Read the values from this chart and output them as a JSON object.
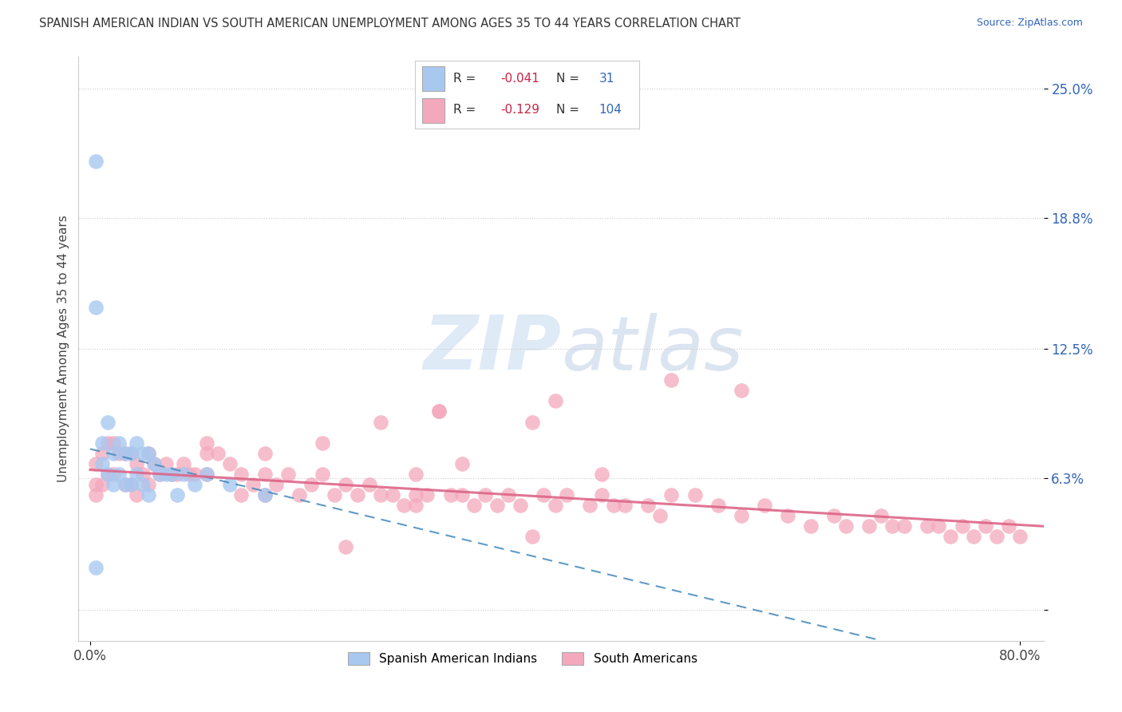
{
  "title": "SPANISH AMERICAN INDIAN VS SOUTH AMERICAN UNEMPLOYMENT AMONG AGES 35 TO 44 YEARS CORRELATION CHART",
  "source": "Source: ZipAtlas.com",
  "ylabel": "Unemployment Among Ages 35 to 44 years",
  "xlim": [
    -0.01,
    0.82
  ],
  "ylim": [
    -0.015,
    0.265
  ],
  "ytick_vals": [
    0.0,
    0.063,
    0.125,
    0.188,
    0.25
  ],
  "ytick_labels": [
    "",
    "6.3%",
    "12.5%",
    "18.8%",
    "25.0%"
  ],
  "xtick_vals": [
    0.0,
    0.8
  ],
  "xtick_labels": [
    "0.0%",
    "80.0%"
  ],
  "R_blue": -0.041,
  "N_blue": 31,
  "R_pink": -0.129,
  "N_pink": 104,
  "legend_labels": [
    "Spanish American Indians",
    "South Americans"
  ],
  "blue_color": "#a8c8f0",
  "pink_color": "#f4a8bc",
  "blue_line_color": "#4488bb",
  "pink_line_color": "#dd6688",
  "background_color": "#ffffff",
  "watermark_zip": "ZIP",
  "watermark_atlas": "atlas",
  "blue_x": [
    0.005,
    0.005,
    0.005,
    0.01,
    0.01,
    0.015,
    0.015,
    0.02,
    0.02,
    0.025,
    0.025,
    0.03,
    0.03,
    0.035,
    0.035,
    0.04,
    0.04,
    0.045,
    0.045,
    0.05,
    0.05,
    0.055,
    0.06,
    0.065,
    0.07,
    0.075,
    0.08,
    0.09,
    0.1,
    0.12,
    0.15
  ],
  "blue_y": [
    0.215,
    0.145,
    0.02,
    0.08,
    0.07,
    0.09,
    0.065,
    0.075,
    0.06,
    0.08,
    0.065,
    0.075,
    0.06,
    0.075,
    0.06,
    0.08,
    0.065,
    0.075,
    0.06,
    0.075,
    0.055,
    0.07,
    0.065,
    0.065,
    0.065,
    0.055,
    0.065,
    0.06,
    0.065,
    0.06,
    0.055
  ],
  "pink_x": [
    0.005,
    0.005,
    0.005,
    0.01,
    0.01,
    0.015,
    0.015,
    0.02,
    0.02,
    0.025,
    0.03,
    0.03,
    0.035,
    0.035,
    0.04,
    0.04,
    0.045,
    0.05,
    0.05,
    0.055,
    0.06,
    0.065,
    0.07,
    0.075,
    0.08,
    0.085,
    0.09,
    0.1,
    0.1,
    0.11,
    0.12,
    0.13,
    0.13,
    0.14,
    0.15,
    0.15,
    0.16,
    0.17,
    0.18,
    0.19,
    0.2,
    0.21,
    0.22,
    0.23,
    0.24,
    0.25,
    0.26,
    0.27,
    0.28,
    0.28,
    0.29,
    0.3,
    0.31,
    0.32,
    0.33,
    0.34,
    0.35,
    0.36,
    0.37,
    0.38,
    0.39,
    0.4,
    0.41,
    0.43,
    0.44,
    0.45,
    0.46,
    0.48,
    0.49,
    0.5,
    0.52,
    0.54,
    0.56,
    0.58,
    0.6,
    0.62,
    0.64,
    0.65,
    0.67,
    0.68,
    0.69,
    0.7,
    0.72,
    0.73,
    0.74,
    0.75,
    0.76,
    0.77,
    0.78,
    0.79,
    0.8,
    0.56,
    0.4,
    0.3,
    0.25,
    0.2,
    0.15,
    0.1,
    0.32,
    0.28,
    0.44,
    0.5,
    0.38,
    0.22
  ],
  "pink_y": [
    0.07,
    0.06,
    0.055,
    0.075,
    0.06,
    0.08,
    0.065,
    0.08,
    0.065,
    0.075,
    0.075,
    0.06,
    0.075,
    0.06,
    0.07,
    0.055,
    0.065,
    0.075,
    0.06,
    0.07,
    0.065,
    0.07,
    0.065,
    0.065,
    0.07,
    0.065,
    0.065,
    0.08,
    0.065,
    0.075,
    0.07,
    0.065,
    0.055,
    0.06,
    0.065,
    0.055,
    0.06,
    0.065,
    0.055,
    0.06,
    0.065,
    0.055,
    0.06,
    0.055,
    0.06,
    0.055,
    0.055,
    0.05,
    0.055,
    0.05,
    0.055,
    0.095,
    0.055,
    0.055,
    0.05,
    0.055,
    0.05,
    0.055,
    0.05,
    0.09,
    0.055,
    0.05,
    0.055,
    0.05,
    0.055,
    0.05,
    0.05,
    0.05,
    0.045,
    0.11,
    0.055,
    0.05,
    0.045,
    0.05,
    0.045,
    0.04,
    0.045,
    0.04,
    0.04,
    0.045,
    0.04,
    0.04,
    0.04,
    0.04,
    0.035,
    0.04,
    0.035,
    0.04,
    0.035,
    0.04,
    0.035,
    0.105,
    0.1,
    0.095,
    0.09,
    0.08,
    0.075,
    0.075,
    0.07,
    0.065,
    0.065,
    0.055,
    0.035,
    0.03
  ]
}
